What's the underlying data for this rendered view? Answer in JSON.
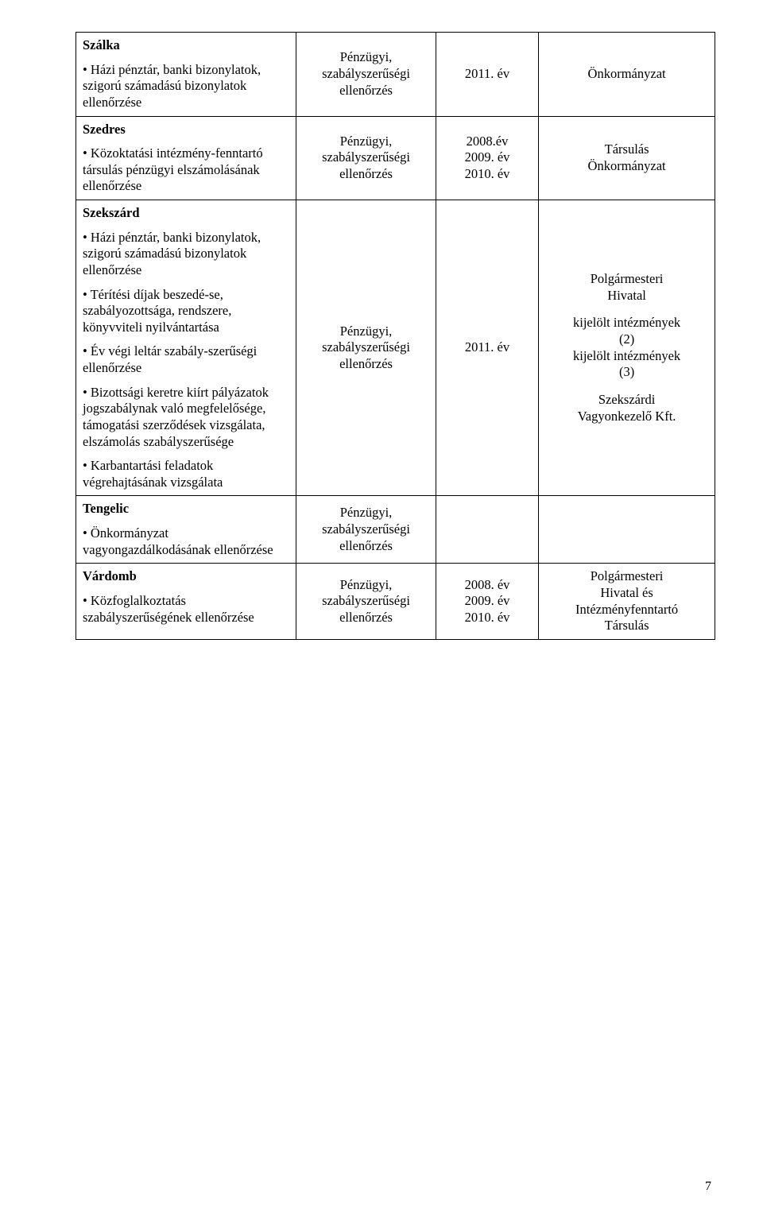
{
  "rows": [
    {
      "col1_html": "<p class='block'><span class='bold' data-bind='rows.0.title'></span></p><p class='block' data-bind='rows.0.item1'></p>",
      "title": "Szálka",
      "item1": "• Házi pénztár, banki bizonylatok, szigorú számadású bizonylatok ellenőrzése",
      "col2": "Pénzügyi,\nszabályszerűségi\nellenőrzés",
      "col3": "2011. év",
      "col4": "Önkormányzat"
    },
    {
      "col1_html": "<p class='block'><span class='bold' data-bind='rows.1.title'></span></p><p class='block' data-bind='rows.1.item1'></p>",
      "title": "Szedres",
      "item1": "• Közoktatási intézmény-fenntartó társulás pénzügyi elszámolásának ellenőrzése",
      "col2": "Pénzügyi,\nszabályszerűségi\nellenőrzés",
      "col3": "2008.év\n2009. év\n2010. év",
      "col4": "Társulás\nÖnkormányzat"
    },
    {
      "col1_html": "<p class='block'><span class='bold' data-bind='rows.2.title'></span></p><p class='block' data-bind='rows.2.item1'></p><p class='block' data-bind='rows.2.item2'></p><p class='block' data-bind='rows.2.item3'></p><p class='block' data-bind='rows.2.item4'></p><p class='block' data-bind='rows.2.item5'></p>",
      "title": "Szekszárd",
      "item1": "• Házi pénztár, banki bizonylatok, szigorú számadású bizonylatok ellenőrzése",
      "item2": "• Térítési díjak beszedé-se, szabályozottsága, rendszere, könyvviteli nyilvántartása",
      "item3": "• Év végi leltár szabály-szerűségi ellenőrzése",
      "item4": "• Bizottsági keretre kiírt pályázatok jogszabálynak való megfelelősége, támogatási szerződések vizsgálata, elszámolás szabályszerűsége",
      "item5": "• Karbantartási feladatok végrehajtásának vizsgálata",
      "col2": "Pénzügyi,\nszabályszerűségi\nellenőrzés",
      "col3": "2011. év",
      "col4": "Polgármesteri\nHivatal\n\nkijelölt intézmények\n(2)\nkijelölt intézmények\n(3)\n\nSzekszárdi\nVagyonkezelő Kft."
    },
    {
      "col1_html": "<p class='block'><span class='bold' data-bind='rows.3.title'></span></p><p class='block' data-bind='rows.3.item1'></p>",
      "title": "Tengelic",
      "item1": "• Önkormányzat vagyongazdálkodásának ellenőrzése",
      "col2": "Pénzügyi,\nszabályszerűségi\nellenőrzés",
      "col3": "",
      "col4": ""
    },
    {
      "col1_html": "<p class='block'><span class='bold' data-bind='rows.4.title'></span></p><p class='block' data-bind='rows.4.item1'></p>",
      "title": "Várdomb",
      "item1": "• Közfoglalkoztatás szabályszerűségének ellenőrzése",
      "col2": "Pénzügyi,\nszabályszerűségi\nellenőrzés",
      "col3": "2008. év\n2009. év\n2010. év",
      "col4": "Polgármesteri\nHivatal és\nIntézményfenntartó\nTársulás"
    }
  ],
  "page_number": "7"
}
